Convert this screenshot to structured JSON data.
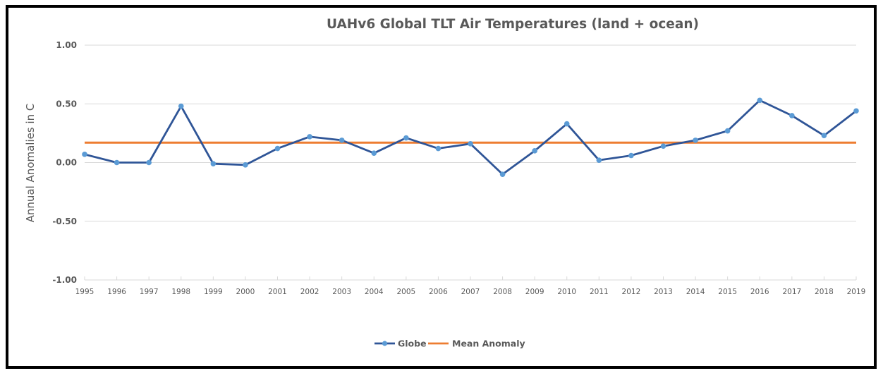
{
  "chart_data": {
    "type": "line",
    "title": "UAHv6 Global TLT Air Temperatures (land + ocean)",
    "xlabel": "",
    "ylabel": "Annual Anomalies in C",
    "ylim": [
      -1.0,
      1.0
    ],
    "yticks": [
      1.0,
      0.5,
      0.0,
      -0.5,
      -1.0
    ],
    "ytick_labels": [
      "1.00",
      "0.50",
      "0.00",
      "-0.50",
      "-1.00"
    ],
    "grid": true,
    "legend_position": "bottom",
    "categories": [
      "1995",
      "1996",
      "1997",
      "1998",
      "1999",
      "2000",
      "2001",
      "2002",
      "2003",
      "2004",
      "2005",
      "2006",
      "2007",
      "2008",
      "2009",
      "2010",
      "2011",
      "2012",
      "2013",
      "2014",
      "2015",
      "2016",
      "2017",
      "2018",
      "2019"
    ],
    "series": [
      {
        "name": "Globe",
        "color": "#2F5597",
        "marker_color": "#5B9BD5",
        "values": [
          0.07,
          0.0,
          0.0,
          0.48,
          -0.01,
          -0.02,
          0.12,
          0.22,
          0.19,
          0.08,
          0.21,
          0.12,
          0.16,
          -0.1,
          0.1,
          0.33,
          0.02,
          0.06,
          0.14,
          0.19,
          0.27,
          0.53,
          0.4,
          0.23,
          0.44
        ]
      },
      {
        "name": "Mean Anomaly",
        "color": "#ED7D31",
        "values": [
          0.17,
          0.17,
          0.17,
          0.17,
          0.17,
          0.17,
          0.17,
          0.17,
          0.17,
          0.17,
          0.17,
          0.17,
          0.17,
          0.17,
          0.17,
          0.17,
          0.17,
          0.17,
          0.17,
          0.17,
          0.17,
          0.17,
          0.17,
          0.17,
          0.17
        ]
      }
    ]
  }
}
